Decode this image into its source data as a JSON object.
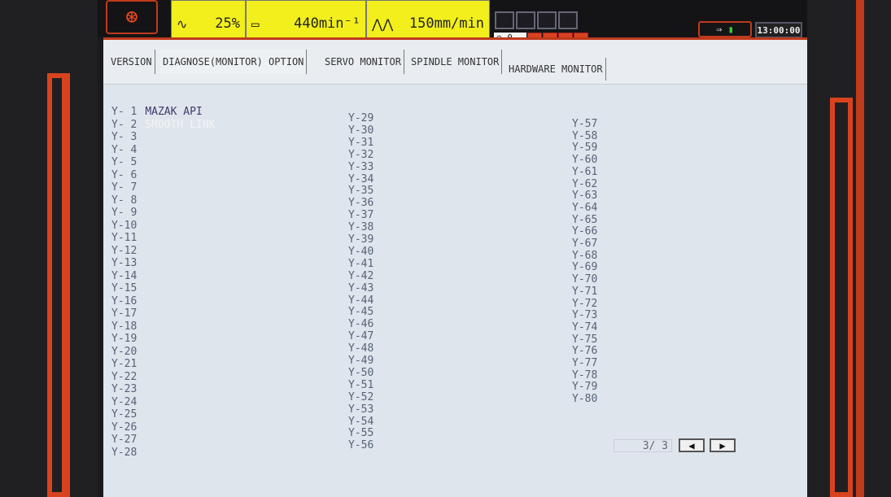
{
  "header": {
    "home_icon": "home-arrow-icon",
    "override": {
      "icon": "wave-icon",
      "value": "25%"
    },
    "spindle": {
      "icon": "spindle-icon",
      "value": "440min⁻¹"
    },
    "feed": {
      "icon": "zigzag-feed-icon",
      "value": "150mm/min"
    },
    "tool_count": "0",
    "clock": "13:00:00",
    "accent": "#d8431f",
    "status_yellow": "#f2ef1c"
  },
  "tabs": [
    {
      "label": "VERSION"
    },
    {
      "label": "DIAGNOSE(MONITOR) OPTION"
    },
    {
      "label": "SERVO MONITOR"
    },
    {
      "label": "SPINDLE MONITOR"
    },
    {
      "label": "HARDWARE MONITOR"
    }
  ],
  "columns": [
    [
      {
        "id": "Y- 1",
        "name": "MAZAK API"
      },
      {
        "id": "Y- 2",
        "name": "SMOOTH LINK",
        "dim": true
      },
      {
        "id": "Y- 3"
      },
      {
        "id": "Y- 4"
      },
      {
        "id": "Y- 5"
      },
      {
        "id": "Y- 6"
      },
      {
        "id": "Y- 7"
      },
      {
        "id": "Y- 8"
      },
      {
        "id": "Y- 9"
      },
      {
        "id": "Y-10"
      },
      {
        "id": "Y-11"
      },
      {
        "id": "Y-12"
      },
      {
        "id": "Y-13"
      },
      {
        "id": "Y-14"
      },
      {
        "id": "Y-15"
      },
      {
        "id": "Y-16"
      },
      {
        "id": "Y-17"
      },
      {
        "id": "Y-18"
      },
      {
        "id": "Y-19"
      },
      {
        "id": "Y-20"
      },
      {
        "id": "Y-21"
      },
      {
        "id": "Y-22"
      },
      {
        "id": "Y-23"
      },
      {
        "id": "Y-24"
      },
      {
        "id": "Y-25"
      },
      {
        "id": "Y-26"
      },
      {
        "id": "Y-27"
      },
      {
        "id": "Y-28"
      }
    ],
    [
      {
        "id": "Y-29"
      },
      {
        "id": "Y-30"
      },
      {
        "id": "Y-31"
      },
      {
        "id": "Y-32"
      },
      {
        "id": "Y-33"
      },
      {
        "id": "Y-34"
      },
      {
        "id": "Y-35"
      },
      {
        "id": "Y-36"
      },
      {
        "id": "Y-37"
      },
      {
        "id": "Y-38"
      },
      {
        "id": "Y-39"
      },
      {
        "id": "Y-40"
      },
      {
        "id": "Y-41"
      },
      {
        "id": "Y-42"
      },
      {
        "id": "Y-43"
      },
      {
        "id": "Y-44"
      },
      {
        "id": "Y-45"
      },
      {
        "id": "Y-46"
      },
      {
        "id": "Y-47"
      },
      {
        "id": "Y-48"
      },
      {
        "id": "Y-49"
      },
      {
        "id": "Y-50"
      },
      {
        "id": "Y-51"
      },
      {
        "id": "Y-52"
      },
      {
        "id": "Y-53"
      },
      {
        "id": "Y-54"
      },
      {
        "id": "Y-55"
      },
      {
        "id": "Y-56"
      }
    ],
    [
      {
        "id": "Y-57"
      },
      {
        "id": "Y-58"
      },
      {
        "id": "Y-59"
      },
      {
        "id": "Y-60"
      },
      {
        "id": "Y-61"
      },
      {
        "id": "Y-62"
      },
      {
        "id": "Y-63"
      },
      {
        "id": "Y-64"
      },
      {
        "id": "Y-65"
      },
      {
        "id": "Y-66"
      },
      {
        "id": "Y-67"
      },
      {
        "id": "Y-68"
      },
      {
        "id": "Y-69"
      },
      {
        "id": "Y-70"
      },
      {
        "id": "Y-71"
      },
      {
        "id": "Y-72"
      },
      {
        "id": "Y-73"
      },
      {
        "id": "Y-74"
      },
      {
        "id": "Y-75"
      },
      {
        "id": "Y-76"
      },
      {
        "id": "Y-77"
      },
      {
        "id": "Y-78"
      },
      {
        "id": "Y-79"
      },
      {
        "id": "Y-80"
      }
    ]
  ],
  "pager": {
    "page": "3/ 3",
    "prev_icon": "triangle-left-icon",
    "next_icon": "triangle-right-icon"
  }
}
